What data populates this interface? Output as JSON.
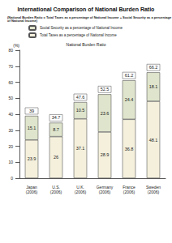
{
  "chart_data": {
    "type": "bar",
    "stacked": true,
    "data_labels": true,
    "grid": false,
    "title": "International Comparison of National Burden Ratio",
    "subtitle": "(National Burden Ratio = Total Taxes as a percentage of National Income + Social Security as a percentage of National Income)",
    "y_label": "(%)",
    "annotation": "National Burden Ratio",
    "legend": "top-left",
    "categories": [
      "Japan (2006)",
      "U.S. (2006)",
      "U.K. (2006)",
      "Germany (2006)",
      "France (2006)",
      "Sweden (2006)"
    ],
    "series": [
      {
        "name": "Total Taxes as a percentage of National Income",
        "color": "#f4f0dc",
        "values": [
          23.9,
          26.0,
          37.1,
          28.9,
          36.8,
          48.1
        ]
      },
      {
        "name": "Social Security as a percentage of National Income",
        "color": "#dfe5cc",
        "values": [
          15.1,
          8.7,
          10.5,
          23.6,
          24.4,
          18.1
        ]
      }
    ],
    "totals": [
      39.0,
      34.7,
      47.6,
      52.5,
      61.2,
      66.2
    ],
    "ylim": [
      0,
      80
    ],
    "yticks": [
      0,
      10,
      20,
      30,
      40,
      50,
      60,
      70,
      80
    ]
  }
}
